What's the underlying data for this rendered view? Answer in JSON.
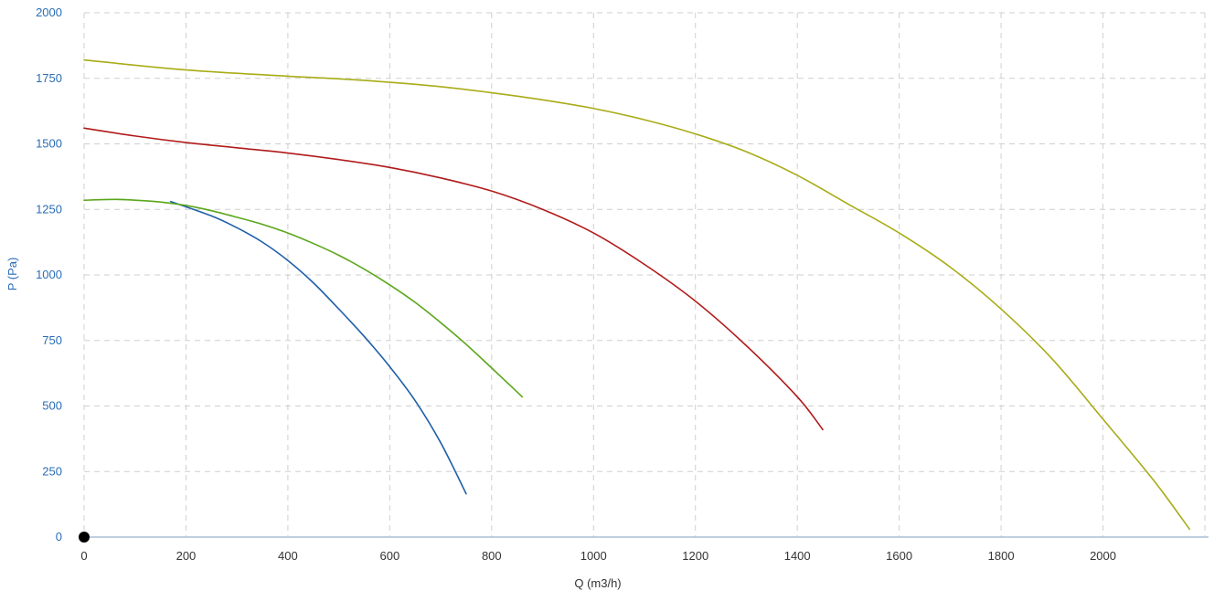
{
  "chart_data": {
    "type": "line",
    "title": "",
    "xlabel": "Q (m3/h)",
    "ylabel": "P (Pa)",
    "xlim": [
      0,
      2200
    ],
    "ylim": [
      0,
      2000
    ],
    "x_ticks": [
      0,
      200,
      400,
      600,
      800,
      1000,
      1200,
      1400,
      1600,
      1800,
      2000
    ],
    "y_ticks": [
      0,
      250,
      500,
      750,
      1000,
      1250,
      1500,
      1750,
      2000
    ],
    "x_tick_labels": [
      "0",
      "200",
      "400",
      "600",
      "800",
      "1000",
      "1200",
      "1400",
      "1600",
      "1800",
      "2000"
    ],
    "y_tick_labels": [
      "0",
      "250",
      "500",
      "750",
      "1000",
      "1250",
      "1500",
      "1750",
      "2000"
    ],
    "grid": true,
    "legend": "none",
    "marker_point": {
      "x": 0,
      "y": 0,
      "color": "#000000"
    },
    "series": [
      {
        "color": "#1f5fa8",
        "points": [
          [
            170,
            1280
          ],
          [
            250,
            1225
          ],
          [
            300,
            1180
          ],
          [
            350,
            1125
          ],
          [
            400,
            1055
          ],
          [
            450,
            970
          ],
          [
            500,
            870
          ],
          [
            550,
            765
          ],
          [
            600,
            650
          ],
          [
            650,
            520
          ],
          [
            700,
            360
          ],
          [
            750,
            165
          ]
        ]
      },
      {
        "color": "#5aa61a",
        "points": [
          [
            0,
            1285
          ],
          [
            60,
            1288
          ],
          [
            100,
            1285
          ],
          [
            150,
            1278
          ],
          [
            200,
            1265
          ],
          [
            250,
            1245
          ],
          [
            300,
            1220
          ],
          [
            350,
            1193
          ],
          [
            400,
            1160
          ],
          [
            450,
            1120
          ],
          [
            500,
            1075
          ],
          [
            550,
            1022
          ],
          [
            600,
            962
          ],
          [
            650,
            895
          ],
          [
            700,
            818
          ],
          [
            750,
            735
          ],
          [
            800,
            645
          ],
          [
            860,
            535
          ]
        ]
      },
      {
        "color": "#b01a1a",
        "points": [
          [
            0,
            1560
          ],
          [
            100,
            1530
          ],
          [
            200,
            1505
          ],
          [
            300,
            1485
          ],
          [
            400,
            1465
          ],
          [
            500,
            1440
          ],
          [
            600,
            1410
          ],
          [
            700,
            1370
          ],
          [
            800,
            1320
          ],
          [
            900,
            1250
          ],
          [
            1000,
            1160
          ],
          [
            1100,
            1040
          ],
          [
            1200,
            900
          ],
          [
            1300,
            730
          ],
          [
            1400,
            535
          ],
          [
            1450,
            410
          ]
        ]
      },
      {
        "color": "#a8ac16",
        "points": [
          [
            0,
            1820
          ],
          [
            200,
            1782
          ],
          [
            400,
            1758
          ],
          [
            500,
            1748
          ],
          [
            600,
            1735
          ],
          [
            700,
            1718
          ],
          [
            800,
            1695
          ],
          [
            900,
            1668
          ],
          [
            1000,
            1635
          ],
          [
            1100,
            1592
          ],
          [
            1200,
            1538
          ],
          [
            1300,
            1470
          ],
          [
            1400,
            1380
          ],
          [
            1500,
            1270
          ],
          [
            1600,
            1160
          ],
          [
            1700,
            1030
          ],
          [
            1800,
            870
          ],
          [
            1900,
            680
          ],
          [
            2000,
            450
          ],
          [
            2100,
            215
          ],
          [
            2170,
            30
          ]
        ]
      }
    ]
  }
}
